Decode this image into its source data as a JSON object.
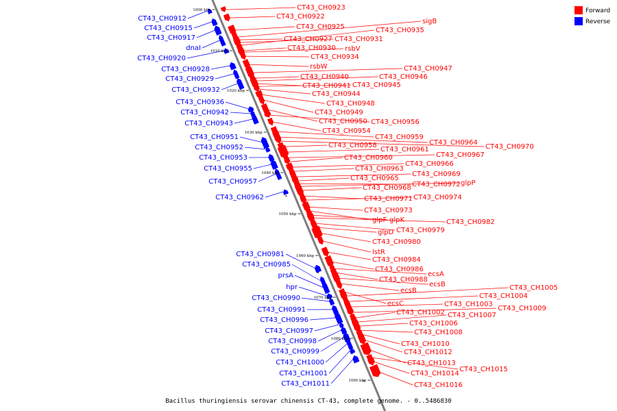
{
  "colors": {
    "forward": "#ff0000",
    "reverse": "#0000ff",
    "axis": "#808080",
    "axis_dark": "#444444"
  },
  "legend": {
    "forward": "Forward",
    "reverse": "Reverse"
  },
  "caption": "Bacillus thuringiensis serovar chinensis CT-43, complete genome. - 0..5486830",
  "ticks": [
    "1000 kbp",
    "1010 kbp",
    "1020 kbp",
    "1030 kbp",
    "1040 kbp",
    "1050 kbp",
    "1060 kbp",
    "1070 kbp",
    "1080 kbp",
    "1090 kbp"
  ],
  "reverse_labels": [
    "CT43_CH0912",
    "CT43_CH0915",
    "CT43_CH0917",
    "dnaI",
    "CT43_CH0920",
    "CT43_CH0928",
    "CT43_CH0929",
    "CT43_CH0932",
    "CT43_CH0936",
    "CT43_CH0942",
    "CT43_CH0943",
    "CT43_CH0951",
    "CT43_CH0952",
    "CT43_CH0953",
    "CT43_CH0955",
    "CT43_CH0957",
    "CT43_CH0962",
    "CT43_CH0981",
    "CT43_CH0985",
    "prsA",
    "hpr",
    "CT43_CH0990",
    "CT43_CH0991",
    "CT43_CH0996",
    "CT43_CH0997",
    "CT43_CH0998",
    "CT43_CH0999",
    "CT43_CH1000",
    "CT43_CH1001",
    "CT43_CH1011"
  ],
  "forward_labels": [
    "CT43_CH0923",
    "CT43_CH0922",
    "CT43_CH0925",
    "sigB",
    "CT43_CH0927",
    "CT43_CH0931",
    "CT43_CH0935",
    "CT43_CH0930",
    "rsbV",
    "CT43_CH0934",
    "rsbW",
    "CT43_CH0947",
    "CT43_CH0940",
    "CT43_CH0946",
    "CT43_CH0941",
    "CT43_CH0945",
    "CT43_CH0944",
    "CT43_CH0948",
    "CT43_CH0949",
    "CT43_CH0950",
    "CT43_CH0956",
    "CT43_CH0954",
    "CT43_CH0959",
    "CT43_CH0964",
    "CT43_CH0970",
    "CT43_CH0958",
    "CT43_CH0961",
    "CT43_CH0967",
    "CT43_CH0960",
    "CT43_CH0966",
    "CT43_CH0963",
    "CT43_CH0969",
    "CT43_CH0965",
    "CT43_CH0972",
    "glpP",
    "CT43_CH0968",
    "CT43_CH0971",
    "CT43_CH0974",
    "CT43_CH0973",
    "glpF",
    "glpK",
    "CT43_CH0982",
    "CT43_CH0979",
    "glpD",
    "CT43_CH0980",
    "lstR",
    "CT43_CH0984",
    "CT43_CH0986",
    "ecsA",
    "CT43_CH0988",
    "ecsB",
    "ecsB",
    "ecsC",
    "CT43_CH1005",
    "CT43_CH1004",
    "CT43_CH1003",
    "CT43_CH1009",
    "CT43_CH1002",
    "CT43_CH1007",
    "CT43_CH1006",
    "CT43_CH1008",
    "CT43_CH1010",
    "CT43_CH1012",
    "CT43_CH1013",
    "CT43_CH1015",
    "CT43_CH1014",
    "CT43_CH1016"
  ]
}
